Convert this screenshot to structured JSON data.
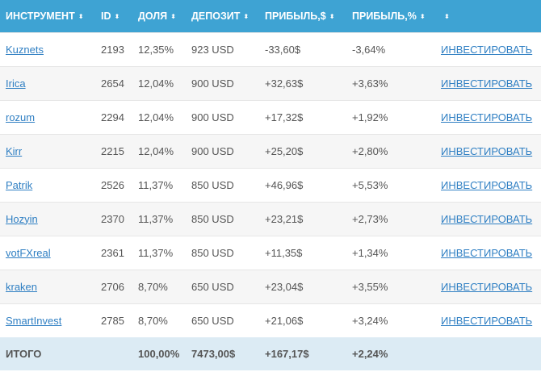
{
  "columns": [
    "ИНСТРУМЕНТ",
    "ID",
    "ДОЛЯ",
    "ДЕПОЗИТ",
    "ПРИБЫЛЬ,$",
    "ПРИБЫЛЬ,%",
    ""
  ],
  "rows": [
    {
      "name": "Kuznets",
      "id": "2193",
      "share": "12,35%",
      "deposit": "923 USD",
      "profit_usd": "-33,60$",
      "profit_pct": "-3,64%",
      "action": "ИНВЕСТИРОВАТЬ"
    },
    {
      "name": "Irica",
      "id": "2654",
      "share": "12,04%",
      "deposit": "900 USD",
      "profit_usd": "+32,63$",
      "profit_pct": "+3,63%",
      "action": "ИНВЕСТИРОВАТЬ"
    },
    {
      "name": "rozum",
      "id": "2294",
      "share": "12,04%",
      "deposit": "900 USD",
      "profit_usd": "+17,32$",
      "profit_pct": "+1,92%",
      "action": "ИНВЕСТИРОВАТЬ"
    },
    {
      "name": "Kirr",
      "id": "2215",
      "share": "12,04%",
      "deposit": "900 USD",
      "profit_usd": "+25,20$",
      "profit_pct": "+2,80%",
      "action": "ИНВЕСТИРОВАТЬ"
    },
    {
      "name": "Patrik",
      "id": "2526",
      "share": "11,37%",
      "deposit": "850 USD",
      "profit_usd": "+46,96$",
      "profit_pct": "+5,53%",
      "action": "ИНВЕСТИРОВАТЬ"
    },
    {
      "name": "Hozyin",
      "id": "2370",
      "share": "11,37%",
      "deposit": "850 USD",
      "profit_usd": "+23,21$",
      "profit_pct": "+2,73%",
      "action": "ИНВЕСТИРОВАТЬ"
    },
    {
      "name": "votFXreal",
      "id": "2361",
      "share": "11,37%",
      "deposit": "850 USD",
      "profit_usd": "+11,35$",
      "profit_pct": "+1,34%",
      "action": "ИНВЕСТИРОВАТЬ"
    },
    {
      "name": "kraken",
      "id": "2706",
      "share": "8,70%",
      "deposit": "650 USD",
      "profit_usd": "+23,04$",
      "profit_pct": "+3,55%",
      "action": "ИНВЕСТИРОВАТЬ"
    },
    {
      "name": "SmartInvest",
      "id": "2785",
      "share": "8,70%",
      "deposit": "650 USD",
      "profit_usd": "+21,06$",
      "profit_pct": "+3,24%",
      "action": "ИНВЕСТИРОВАТЬ"
    }
  ],
  "totals": {
    "label": "ИТОГО",
    "share": "100,00%",
    "deposit": "7473,00$",
    "profit_usd": "+167,17$",
    "profit_pct": "+2,24%"
  },
  "sort_icon": "sort-icon",
  "colors": {
    "header_bg": "#3ea3d3",
    "footer_bg": "#dcebf4",
    "link": "#2f7fc3"
  }
}
